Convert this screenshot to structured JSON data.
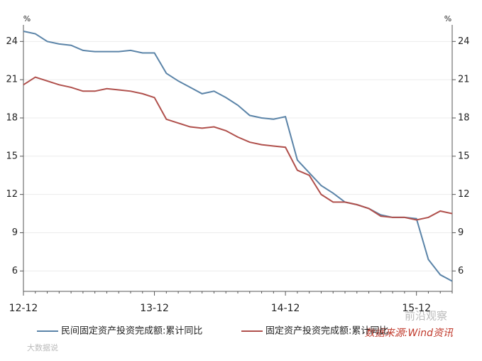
{
  "chart_data": {
    "type": "line",
    "y_unit": "%",
    "y2_unit": "%",
    "categories": [
      "12-12",
      null,
      null,
      null,
      null,
      null,
      null,
      null,
      null,
      null,
      null,
      "13-12",
      null,
      null,
      null,
      null,
      null,
      null,
      null,
      null,
      null,
      null,
      "14-12",
      null,
      null,
      null,
      null,
      null,
      null,
      null,
      null,
      null,
      null,
      "15-12",
      null,
      null,
      null
    ],
    "series": [
      {
        "name": "民间固定资产投资完成额:累计同比",
        "color": "#5b84a8",
        "values": [
          24.8,
          24.6,
          24.0,
          23.8,
          23.7,
          23.3,
          23.2,
          23.2,
          23.2,
          23.3,
          23.1,
          23.1,
          21.5,
          20.9,
          20.4,
          19.9,
          20.1,
          19.6,
          19.0,
          18.2,
          18.0,
          17.9,
          18.1,
          14.7,
          13.7,
          12.7,
          12.1,
          11.4,
          11.2,
          10.9,
          10.4,
          10.2,
          10.2,
          10.1,
          6.9,
          5.7,
          5.2
        ]
      },
      {
        "name": "固定资产投资完成额:累计同比",
        "color": "#b0504c",
        "values": [
          20.6,
          21.2,
          20.9,
          20.6,
          20.4,
          20.1,
          20.1,
          20.3,
          20.2,
          20.1,
          19.9,
          19.6,
          17.9,
          17.6,
          17.3,
          17.2,
          17.3,
          17.0,
          16.5,
          16.1,
          15.9,
          15.8,
          15.7,
          13.9,
          13.5,
          12.0,
          11.4,
          11.4,
          11.2,
          10.9,
          10.3,
          10.2,
          10.2,
          10.0,
          10.2,
          10.7,
          10.5
        ]
      }
    ],
    "ylim": [
      4.4,
      25.3
    ],
    "yticks": [
      6,
      9,
      12,
      15,
      18,
      21,
      24
    ],
    "y2lim": [
      4.4,
      25.3
    ],
    "y2ticks": [
      6,
      9,
      12,
      15,
      18,
      21,
      24
    ],
    "grid": true,
    "legend": "bottom",
    "source": "数据来源:Wind资讯",
    "watermarks": [
      "前沿观察",
      "大数据说"
    ]
  }
}
